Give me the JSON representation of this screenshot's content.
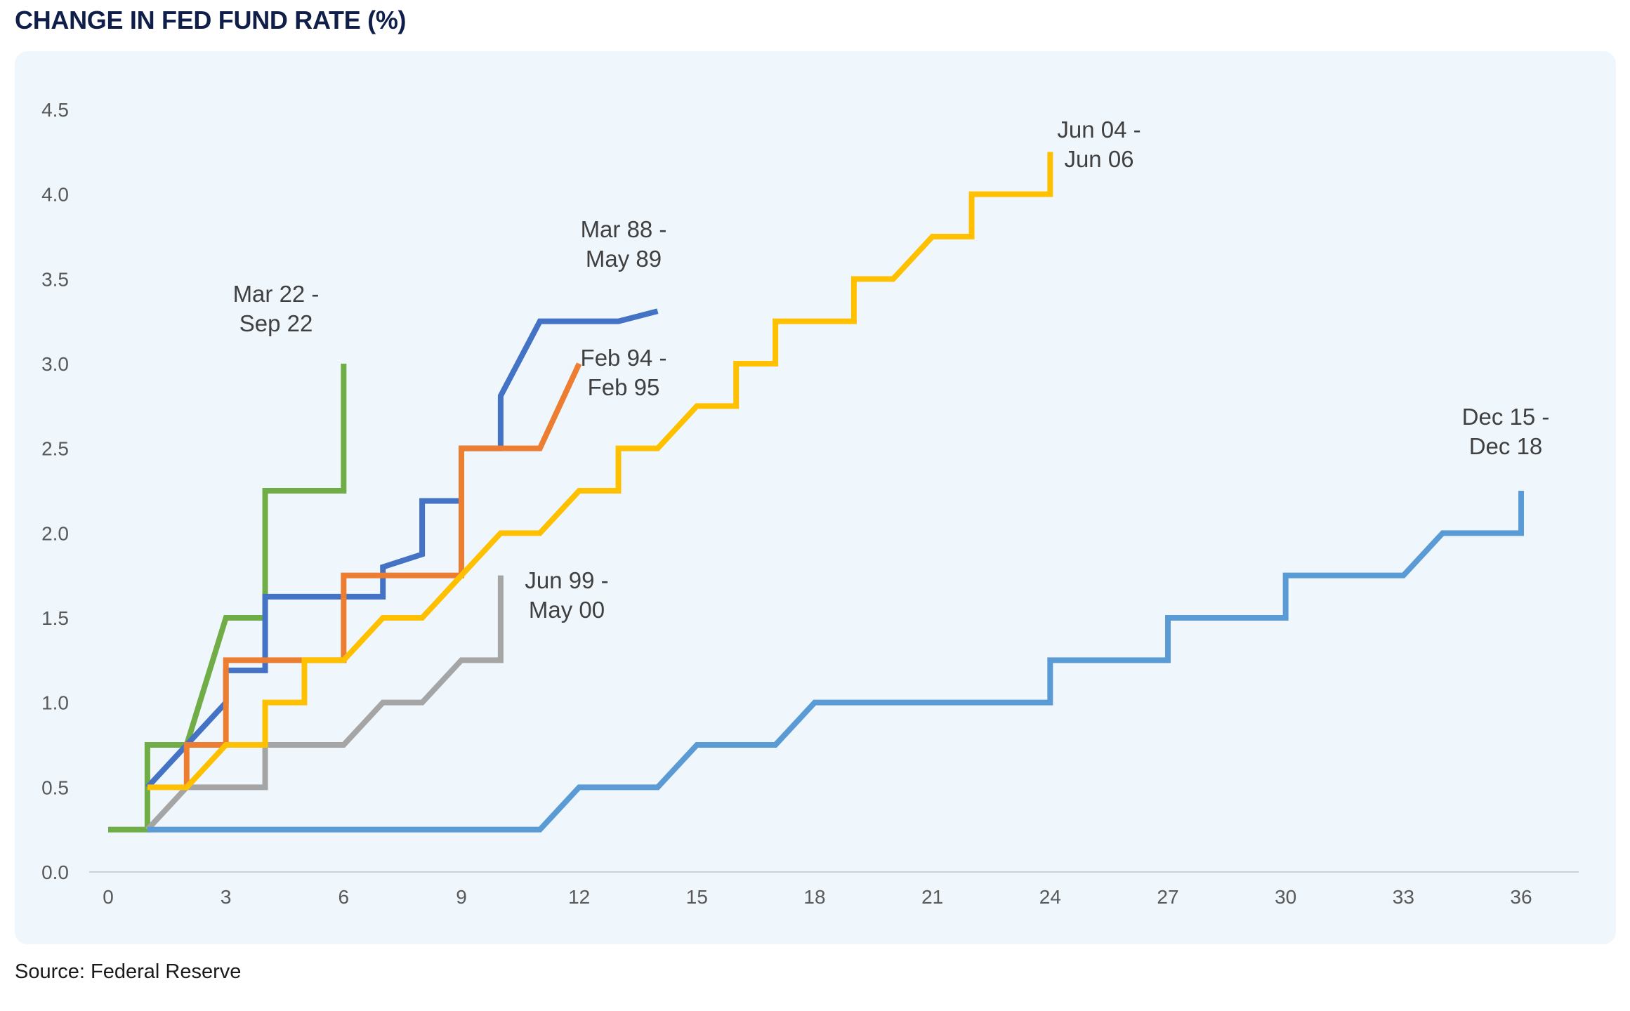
{
  "title": "CHANGE IN FED FUND RATE (%)",
  "source": "Source: Federal Reserve",
  "chart_data": {
    "type": "line",
    "title": "CHANGE IN FED FUND RATE (%)",
    "xlabel": "",
    "ylabel": "",
    "xlim": [
      0,
      36
    ],
    "ylim": [
      0,
      4.5
    ],
    "x_ticks": [
      0,
      3,
      6,
      9,
      12,
      15,
      18,
      21,
      24,
      27,
      30,
      33,
      36
    ],
    "y_ticks": [
      "0.0",
      "0.5",
      "1.0",
      "1.5",
      "2.0",
      "2.5",
      "3.0",
      "3.5",
      "4.0",
      "4.5"
    ],
    "grid": false,
    "legend": "none",
    "series": [
      {
        "name": "Mar 22 - Sep 22",
        "label_lines": [
          "Mar 22 -",
          "Sep 22"
        ],
        "color": "#70ad47",
        "points": [
          [
            0,
            0.25
          ],
          [
            1,
            0.25
          ],
          [
            1,
            0.75
          ],
          [
            2,
            0.75
          ],
          [
            3,
            1.5
          ],
          [
            4,
            1.5
          ],
          [
            4,
            2.25
          ],
          [
            6,
            2.25
          ],
          [
            6,
            3.0
          ]
        ]
      },
      {
        "name": "Mar 88 - May 89",
        "label_lines": [
          "Mar 88 -",
          "May 89"
        ],
        "color": "#4472c4",
        "points": [
          [
            1,
            0.5
          ],
          [
            3,
            1.0
          ],
          [
            3,
            1.19
          ],
          [
            4,
            1.19
          ],
          [
            4,
            1.625
          ],
          [
            7,
            1.625
          ],
          [
            7,
            1.8
          ],
          [
            8,
            1.875
          ],
          [
            8,
            2.19
          ],
          [
            9,
            2.19
          ],
          [
            9,
            2.5
          ],
          [
            10,
            2.5
          ],
          [
            10,
            2.81
          ],
          [
            11,
            3.25
          ],
          [
            13,
            3.25
          ],
          [
            14,
            3.31
          ]
        ]
      },
      {
        "name": "Feb 94 - Feb 95",
        "label_lines": [
          "Feb 94 -",
          "Feb 95"
        ],
        "color": "#ed7d31",
        "points": [
          [
            2,
            0.5
          ],
          [
            2,
            0.75
          ],
          [
            3,
            0.75
          ],
          [
            3,
            1.25
          ],
          [
            5,
            1.25
          ],
          [
            6,
            1.25
          ],
          [
            6,
            1.75
          ],
          [
            9,
            1.75
          ],
          [
            9,
            2.5
          ],
          [
            11,
            2.5
          ],
          [
            12,
            3.0
          ]
        ]
      },
      {
        "name": "Jun 99 - May 00",
        "label_lines": [
          "Jun 99 -",
          "May 00"
        ],
        "color": "#a5a5a5",
        "points": [
          [
            1,
            0.25
          ],
          [
            2,
            0.5
          ],
          [
            4,
            0.5
          ],
          [
            4,
            0.75
          ],
          [
            6,
            0.75
          ],
          [
            7,
            1.0
          ],
          [
            8,
            1.0
          ],
          [
            9,
            1.25
          ],
          [
            10,
            1.25
          ],
          [
            10,
            1.75
          ]
        ]
      },
      {
        "name": "Jun 04 - Jun 06",
        "label_lines": [
          "Jun 04 -",
          "Jun 06"
        ],
        "color": "#ffc000",
        "points": [
          [
            1,
            0.5
          ],
          [
            2,
            0.5
          ],
          [
            3,
            0.75
          ],
          [
            4,
            0.75
          ],
          [
            4,
            1.0
          ],
          [
            5,
            1.0
          ],
          [
            5,
            1.25
          ],
          [
            6,
            1.25
          ],
          [
            7,
            1.5
          ],
          [
            8,
            1.5
          ],
          [
            10,
            2.0
          ],
          [
            11,
            2.0
          ],
          [
            12,
            2.25
          ],
          [
            13,
            2.25
          ],
          [
            13,
            2.5
          ],
          [
            14,
            2.5
          ],
          [
            15,
            2.75
          ],
          [
            16,
            2.75
          ],
          [
            16,
            3.0
          ],
          [
            17,
            3.0
          ],
          [
            17,
            3.25
          ],
          [
            19,
            3.25
          ],
          [
            19,
            3.5
          ],
          [
            20,
            3.5
          ],
          [
            21,
            3.75
          ],
          [
            22,
            3.75
          ],
          [
            22,
            4.0
          ],
          [
            24,
            4.0
          ],
          [
            24,
            4.25
          ]
        ]
      },
      {
        "name": "Dec 15 - Dec 18",
        "label_lines": [
          "Dec 15 -",
          "Dec 18"
        ],
        "color": "#5b9bd5",
        "points": [
          [
            1,
            0.25
          ],
          [
            11,
            0.25
          ],
          [
            12,
            0.5
          ],
          [
            14,
            0.5
          ],
          [
            15,
            0.75
          ],
          [
            17,
            0.75
          ],
          [
            18,
            1.0
          ],
          [
            24,
            1.0
          ],
          [
            24,
            1.25
          ],
          [
            27,
            1.25
          ],
          [
            27,
            1.5
          ],
          [
            30,
            1.5
          ],
          [
            30,
            1.75
          ],
          [
            33,
            1.75
          ],
          [
            34,
            2.0
          ],
          [
            36,
            2.0
          ],
          [
            36,
            2.25
          ]
        ]
      }
    ]
  }
}
